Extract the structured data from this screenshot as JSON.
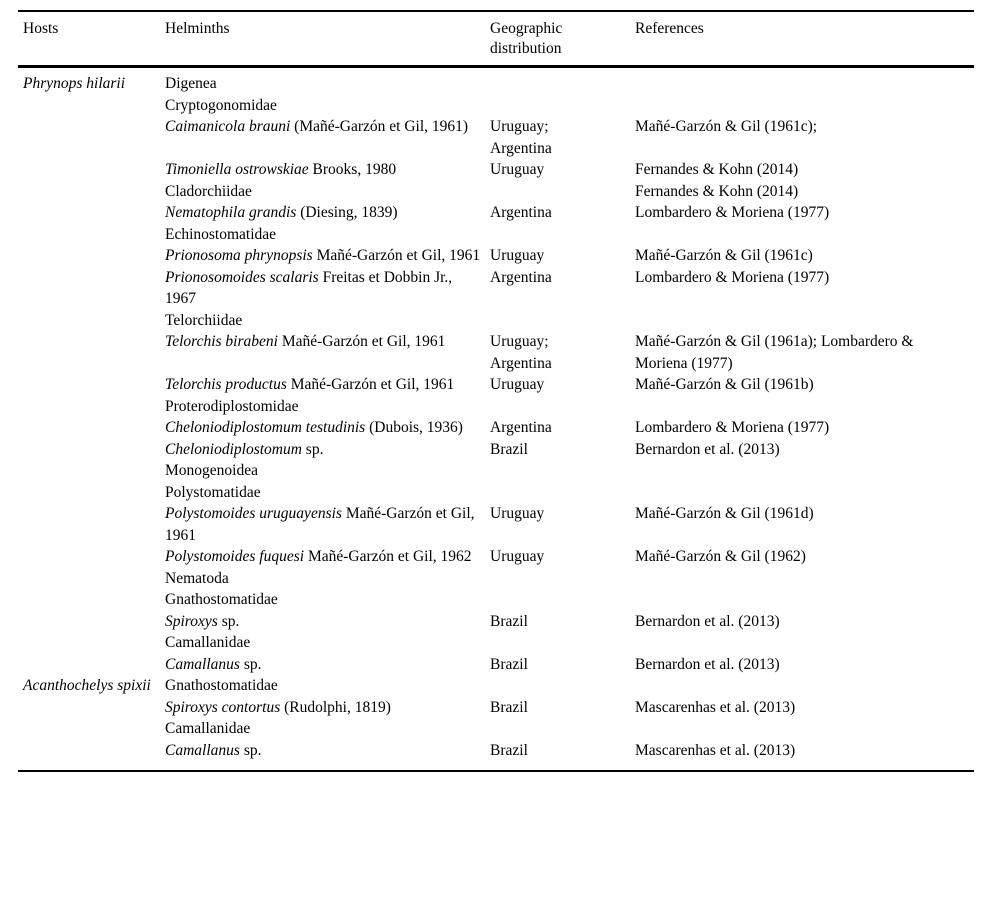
{
  "table": {
    "columns": [
      "Hosts",
      "Helminths",
      "Geographic distribution",
      "References"
    ],
    "rows": [
      {
        "host": "Phrynops hilarii",
        "parts": [
          {
            "t": "Digenea",
            "i": false
          }
        ],
        "geo": "",
        "ref": ""
      },
      {
        "host": "",
        "parts": [
          {
            "t": "Cryptogonomidae",
            "i": false
          }
        ],
        "geo": "",
        "ref": ""
      },
      {
        "host": "",
        "parts": [
          {
            "t": "Caimanicola brauni",
            "i": true
          },
          {
            "t": " (Mañé-Garzón et Gil, 1961)",
            "i": false
          }
        ],
        "geo": "Uruguay; Argentina",
        "ref": "Mañé-Garzón & Gil (1961c);"
      },
      {
        "host": "",
        "parts": [
          {
            "t": "Timoniella ostrowskiae",
            "i": true
          },
          {
            "t": " Brooks, 1980",
            "i": false
          }
        ],
        "geo": "Uruguay",
        "ref": "Fernandes & Kohn (2014)"
      },
      {
        "host": "",
        "parts": [
          {
            "t": "Cladorchiidae",
            "i": false
          }
        ],
        "geo": "",
        "ref": "Fernandes & Kohn (2014)"
      },
      {
        "host": "",
        "parts": [
          {
            "t": "Nematophila grandis",
            "i": true
          },
          {
            "t": " (Diesing, 1839)",
            "i": false
          }
        ],
        "geo": "Argentina",
        "ref": "Lombardero & Moriena (1977)"
      },
      {
        "host": "",
        "parts": [
          {
            "t": "Echinostomatidae",
            "i": false
          }
        ],
        "geo": "",
        "ref": ""
      },
      {
        "host": "",
        "parts": [
          {
            "t": "Prionosoma phrynopsis",
            "i": true
          },
          {
            "t": " Mañé-Garzón et Gil, 1961",
            "i": false
          }
        ],
        "geo": "Uruguay",
        "ref": "Mañé-Garzón & Gil (1961c)"
      },
      {
        "host": "",
        "parts": [
          {
            "t": "Prionosomoides scalaris",
            "i": true
          },
          {
            "t": " Freitas et Dobbin Jr., 1967",
            "i": false
          }
        ],
        "geo": "Argentina",
        "ref": "Lombardero & Moriena (1977)"
      },
      {
        "host": "",
        "parts": [
          {
            "t": "Telorchiidae",
            "i": false
          }
        ],
        "geo": "",
        "ref": ""
      },
      {
        "host": "",
        "parts": [
          {
            "t": "Telorchis birabeni",
            "i": true
          },
          {
            "t": " Mañé-Garzón et Gil, 1961",
            "i": false
          }
        ],
        "geo": "Uruguay; Argentina",
        "ref": "Mañé-Garzón & Gil (1961a); Lombardero & Moriena (1977)"
      },
      {
        "host": "",
        "parts": [
          {
            "t": "Telorchis productus",
            "i": true
          },
          {
            "t": " Mañé-Garzón et Gil, 1961",
            "i": false
          }
        ],
        "geo": "Uruguay",
        "ref": "Mañé-Garzón & Gil (1961b)"
      },
      {
        "host": "",
        "parts": [
          {
            "t": "Proterodiplostomidae",
            "i": false
          }
        ],
        "geo": "",
        "ref": ""
      },
      {
        "host": "",
        "parts": [
          {
            "t": "Cheloniodiplostomum testudinis",
            "i": true
          },
          {
            "t": " (Dubois, 1936)",
            "i": false
          }
        ],
        "geo": "Argentina",
        "ref": "Lombardero & Moriena (1977)"
      },
      {
        "host": "",
        "parts": [
          {
            "t": "Cheloniodiplostomum",
            "i": true
          },
          {
            "t": " sp.",
            "i": false
          }
        ],
        "geo": "Brazil",
        "ref": "Bernardon et al. (2013)"
      },
      {
        "host": "",
        "parts": [
          {
            "t": "Monogenoidea",
            "i": false
          }
        ],
        "geo": "",
        "ref": ""
      },
      {
        "host": "",
        "parts": [
          {
            "t": "Polystomatidae",
            "i": false
          }
        ],
        "geo": "",
        "ref": ""
      },
      {
        "host": "",
        "parts": [
          {
            "t": "Polystomoides uruguayensis",
            "i": true
          },
          {
            "t": " Mañé-Garzón et Gil, 1961",
            "i": false
          }
        ],
        "geo": "Uruguay",
        "ref": "Mañé-Garzón & Gil (1961d)"
      },
      {
        "host": "",
        "parts": [
          {
            "t": "Polystomoides fuquesi",
            "i": true
          },
          {
            "t": " Mañé-Garzón et Gil, 1962",
            "i": false
          }
        ],
        "geo": "Uruguay",
        "ref": "Mañé-Garzón & Gil (1962)"
      },
      {
        "host": "",
        "parts": [
          {
            "t": "Nematoda",
            "i": false
          }
        ],
        "geo": "",
        "ref": ""
      },
      {
        "host": "",
        "parts": [
          {
            "t": "Gnathostomatidae",
            "i": false
          }
        ],
        "geo": "",
        "ref": ""
      },
      {
        "host": "",
        "parts": [
          {
            "t": "Spiroxys",
            "i": true
          },
          {
            "t": " sp.",
            "i": false
          }
        ],
        "geo": "Brazil",
        "ref": "Bernardon et al. (2013)"
      },
      {
        "host": "",
        "parts": [
          {
            "t": "Camallanidae",
            "i": false
          }
        ],
        "geo": "",
        "ref": ""
      },
      {
        "host": "",
        "parts": [
          {
            "t": "Camallanus",
            "i": true
          },
          {
            "t": " sp.",
            "i": false
          }
        ],
        "geo": "Brazil",
        "ref": "Bernardon et al. (2013)"
      },
      {
        "host": "Acanthochelys spixii",
        "parts": [
          {
            "t": "Gnathostomatidae",
            "i": false
          }
        ],
        "geo": "",
        "ref": ""
      },
      {
        "host": "",
        "parts": [
          {
            "t": "Spiroxys contortus",
            "i": true
          },
          {
            "t": " (Rudolphi, 1819)",
            "i": false
          }
        ],
        "geo": "Brazil",
        "ref": "Mascarenhas et al. (2013)"
      },
      {
        "host": "",
        "parts": [
          {
            "t": "Camallanidae",
            "i": false
          }
        ],
        "geo": "",
        "ref": ""
      },
      {
        "host": "",
        "parts": [
          {
            "t": "Camallanus",
            "i": true
          },
          {
            "t": " sp.",
            "i": false
          }
        ],
        "geo": "Brazil",
        "ref": "Mascarenhas et al. (2013)"
      }
    ]
  }
}
